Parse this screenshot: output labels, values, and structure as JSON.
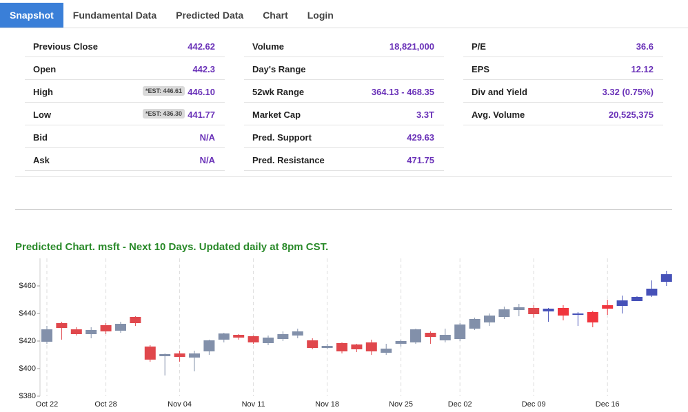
{
  "tabs": [
    "Snapshot",
    "Fundamental Data",
    "Predicted Data",
    "Chart",
    "Login"
  ],
  "stats": [
    [
      {
        "label": "Previous Close",
        "value": "442.62"
      },
      {
        "label": "Open",
        "value": "442.3"
      },
      {
        "label": "High",
        "est": "*EST: 446.61",
        "value": "446.10"
      },
      {
        "label": "Low",
        "est": "*EST: 436.30",
        "value": "441.77"
      },
      {
        "label": "Bid",
        "value": "N/A"
      },
      {
        "label": "Ask",
        "value": "N/A"
      }
    ],
    [
      {
        "label": "Volume",
        "value": "18,821,000"
      },
      {
        "label": "Day's Range"
      },
      {
        "label": "52wk Range",
        "value": "364.13 - 468.35"
      },
      {
        "label": "Market Cap",
        "value": "3.3T"
      },
      {
        "label": "Pred. Support",
        "value": "429.63"
      },
      {
        "label": "Pred. Resistance",
        "value": "471.75"
      }
    ],
    [
      {
        "label": "P/E",
        "value": "36.6"
      },
      {
        "label": "EPS",
        "value": "12.12"
      },
      {
        "label": "Div and Yield",
        "value": "3.32 (0.75%)"
      },
      {
        "label": "Avg. Volume",
        "value": "20,525,375"
      }
    ]
  ],
  "chart_data": {
    "type": "candlestick",
    "title": "Predicted Chart. msft - Next 10 Days. Updated daily at 8pm CST.",
    "categories": [
      "Oct 22",
      null,
      null,
      null,
      "Oct 28",
      null,
      null,
      null,
      null,
      "Nov 04",
      null,
      null,
      null,
      null,
      "Nov 11",
      null,
      null,
      null,
      null,
      "Nov 18",
      null,
      null,
      null,
      null,
      "Nov 25",
      null,
      null,
      null,
      "Dec 02",
      null,
      null,
      null,
      null,
      "Dec 09",
      null,
      null,
      null,
      null,
      "Dec 16",
      null,
      null,
      null,
      null
    ],
    "ylim": [
      380,
      480
    ],
    "yticks": [
      {
        "value": 380,
        "label": "$380"
      },
      {
        "value": 400,
        "label": "$400"
      },
      {
        "value": 420,
        "label": "$420"
      },
      {
        "value": 440,
        "label": "$440"
      },
      {
        "value": 460,
        "label": "$460"
      }
    ],
    "grid": true,
    "series": [
      {
        "up_color": "#8290aa",
        "down_color": "#e0474c",
        "open": [
          419.5,
          433,
          428.5,
          425,
          431.5,
          427.5,
          437.5,
          416,
          409,
          411,
          408,
          412.5,
          421,
          424.5,
          423.5,
          418.5,
          421.5,
          424,
          420.5,
          415,
          418.5,
          417.5,
          419,
          411.5,
          418,
          419,
          426,
          420.5,
          421.5,
          429,
          433.5,
          437.5,
          442.5,
          444,
          null,
          null,
          null,
          null,
          null,
          null,
          null,
          null,
          null
        ],
        "high": [
          431,
          434,
          430,
          430,
          433,
          434,
          438,
          417,
          411,
          413,
          413,
          421,
          426,
          425,
          424,
          424,
          427,
          429,
          422,
          418,
          419,
          418,
          421,
          418,
          421,
          429,
          427,
          429,
          433,
          437,
          440,
          445,
          447,
          446,
          null,
          null,
          null,
          null,
          null,
          null,
          null,
          null,
          null
        ],
        "low": [
          418,
          421,
          424,
          422,
          425,
          426,
          431,
          405,
          395,
          405,
          398,
          410,
          419,
          421,
          418,
          417,
          420,
          422,
          414,
          414,
          411,
          412,
          410,
          410,
          416,
          418,
          418,
          419,
          420,
          428,
          431,
          436,
          438,
          437,
          null,
          null,
          null,
          null,
          null,
          null,
          null,
          null,
          null
        ],
        "close": [
          428.5,
          429.5,
          425,
          428,
          427,
          432.5,
          433,
          406.5,
          410.5,
          408.5,
          411,
          420.5,
          425.5,
          422.5,
          419,
          422.5,
          425,
          427,
          415,
          416.5,
          412.5,
          414,
          412.5,
          414.5,
          420,
          428.5,
          423,
          424.5,
          432,
          436,
          438.5,
          443,
          444.5,
          439.5,
          null,
          null,
          null,
          null,
          null,
          null,
          null,
          null,
          null
        ]
      },
      {
        "up_color": "#4651b8",
        "down_color": "#f0353d",
        "open": [
          null,
          null,
          null,
          null,
          null,
          null,
          null,
          null,
          null,
          null,
          null,
          null,
          null,
          null,
          null,
          null,
          null,
          null,
          null,
          null,
          null,
          null,
          null,
          null,
          null,
          null,
          null,
          null,
          null,
          null,
          null,
          null,
          null,
          null,
          441.5,
          444,
          439,
          441,
          446,
          445.5,
          449,
          453,
          463
        ],
        "high": [
          null,
          null,
          null,
          null,
          null,
          null,
          null,
          null,
          null,
          null,
          null,
          null,
          null,
          null,
          null,
          null,
          null,
          null,
          null,
          null,
          null,
          null,
          null,
          null,
          null,
          null,
          null,
          null,
          null,
          null,
          null,
          null,
          null,
          null,
          444,
          446,
          441,
          442,
          450,
          453,
          452.5,
          464,
          471
        ],
        "low": [
          null,
          null,
          null,
          null,
          null,
          null,
          null,
          null,
          null,
          null,
          null,
          null,
          null,
          null,
          null,
          null,
          null,
          null,
          null,
          null,
          null,
          null,
          null,
          null,
          null,
          null,
          null,
          null,
          null,
          null,
          null,
          null,
          null,
          null,
          434,
          435,
          431,
          430,
          439,
          440,
          449,
          452,
          460
        ],
        "close": [
          null,
          null,
          null,
          null,
          null,
          null,
          null,
          null,
          null,
          null,
          null,
          null,
          null,
          null,
          null,
          null,
          null,
          null,
          null,
          null,
          null,
          null,
          null,
          null,
          null,
          null,
          null,
          null,
          null,
          null,
          null,
          null,
          null,
          null,
          443.5,
          438.5,
          440,
          433.5,
          443.5,
          449.5,
          452,
          458,
          468.5
        ]
      }
    ]
  }
}
